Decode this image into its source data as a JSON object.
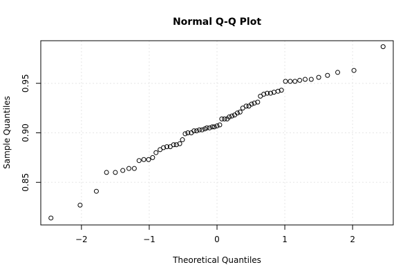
{
  "chart_data": {
    "type": "scatter",
    "title": "Normal Q-Q Plot",
    "xlabel": "Theoretical Quantiles",
    "ylabel": "Sample Quantiles",
    "xlim": [
      -2.6,
      2.6
    ],
    "ylim": [
      0.807,
      0.993
    ],
    "x_ticks": [
      {
        "value": -2,
        "label": "−2"
      },
      {
        "value": -1,
        "label": "−1"
      },
      {
        "value": 0,
        "label": "0"
      },
      {
        "value": 1,
        "label": "1"
      },
      {
        "value": 2,
        "label": "2"
      }
    ],
    "y_ticks": [
      {
        "value": 0.85,
        "label": "0.85"
      },
      {
        "value": 0.9,
        "label": "0.90"
      },
      {
        "value": 0.95,
        "label": "0.95"
      }
    ],
    "grid": true,
    "point_color": "#000000",
    "points": [
      [
        -2.45,
        0.814
      ],
      [
        -2.02,
        0.827
      ],
      [
        -1.78,
        0.841
      ],
      [
        -1.63,
        0.86
      ],
      [
        -1.5,
        0.86
      ],
      [
        -1.39,
        0.862
      ],
      [
        -1.3,
        0.864
      ],
      [
        -1.22,
        0.864
      ],
      [
        -1.15,
        0.872
      ],
      [
        -1.08,
        0.873
      ],
      [
        -1.01,
        0.873
      ],
      [
        -0.95,
        0.875
      ],
      [
        -0.9,
        0.88
      ],
      [
        -0.84,
        0.883
      ],
      [
        -0.79,
        0.885
      ],
      [
        -0.74,
        0.886
      ],
      [
        -0.69,
        0.886
      ],
      [
        -0.64,
        0.888
      ],
      [
        -0.6,
        0.888
      ],
      [
        -0.55,
        0.889
      ],
      [
        -0.51,
        0.893
      ],
      [
        -0.47,
        0.899
      ],
      [
        -0.43,
        0.9
      ],
      [
        -0.38,
        0.9
      ],
      [
        -0.34,
        0.902
      ],
      [
        -0.3,
        0.902
      ],
      [
        -0.26,
        0.903
      ],
      [
        -0.22,
        0.903
      ],
      [
        -0.18,
        0.904
      ],
      [
        -0.15,
        0.905
      ],
      [
        -0.11,
        0.905
      ],
      [
        -0.07,
        0.906
      ],
      [
        -0.04,
        0.906
      ],
      [
        0.0,
        0.907
      ],
      [
        0.04,
        0.908
      ],
      [
        0.07,
        0.914
      ],
      [
        0.11,
        0.914
      ],
      [
        0.15,
        0.914
      ],
      [
        0.18,
        0.916
      ],
      [
        0.22,
        0.917
      ],
      [
        0.26,
        0.918
      ],
      [
        0.3,
        0.92
      ],
      [
        0.34,
        0.921
      ],
      [
        0.38,
        0.925
      ],
      [
        0.43,
        0.927
      ],
      [
        0.47,
        0.927
      ],
      [
        0.51,
        0.929
      ],
      [
        0.55,
        0.93
      ],
      [
        0.6,
        0.931
      ],
      [
        0.64,
        0.937
      ],
      [
        0.69,
        0.939
      ],
      [
        0.74,
        0.94
      ],
      [
        0.79,
        0.94
      ],
      [
        0.84,
        0.941
      ],
      [
        0.9,
        0.942
      ],
      [
        0.95,
        0.943
      ],
      [
        1.01,
        0.952
      ],
      [
        1.08,
        0.952
      ],
      [
        1.15,
        0.952
      ],
      [
        1.22,
        0.953
      ],
      [
        1.3,
        0.954
      ],
      [
        1.39,
        0.954
      ],
      [
        1.5,
        0.956
      ],
      [
        1.63,
        0.958
      ],
      [
        1.78,
        0.961
      ],
      [
        2.02,
        0.963
      ],
      [
        2.45,
        0.987
      ]
    ]
  }
}
